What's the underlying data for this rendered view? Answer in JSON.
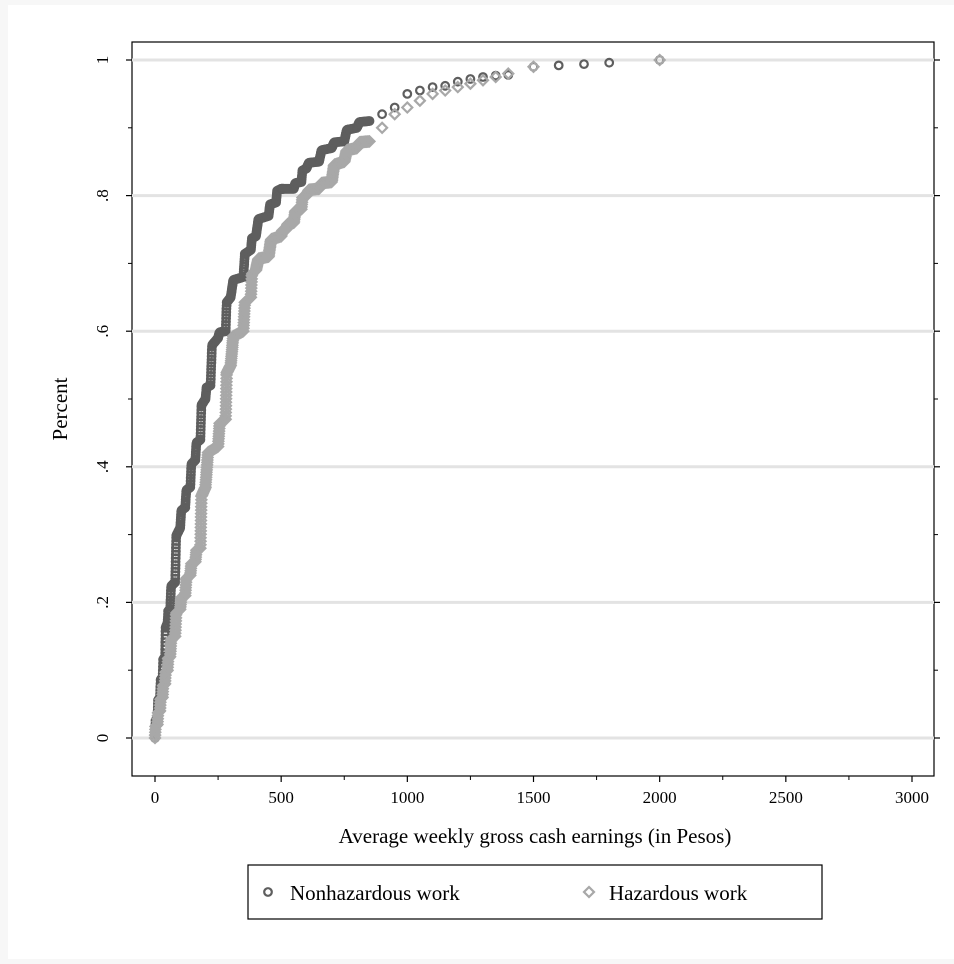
{
  "chart_data": {
    "type": "scatter",
    "xlabel": "Average weekly gross cash earnings (in Pesos)",
    "ylabel": "Percent",
    "xlim": [
      0,
      3000
    ],
    "ylim": [
      0,
      1
    ],
    "x_ticks": [
      "0",
      "500",
      "1000",
      "1500",
      "2000",
      "2500",
      "3000"
    ],
    "x_tick_values": [
      0,
      500,
      1000,
      1500,
      2000,
      2500,
      3000
    ],
    "y_ticks": [
      "0",
      ".2",
      ".4",
      ".6",
      ".8",
      "1"
    ],
    "y_tick_values": [
      0,
      0.2,
      0.4,
      0.6,
      0.8,
      1.0
    ],
    "grid": "horizontal",
    "legend_position": "bottom",
    "series": [
      {
        "name": "Nonhazardous work",
        "marker": "circle",
        "color": "#5e5e5e",
        "x": [
          0,
          10,
          20,
          30,
          40,
          50,
          60,
          80,
          100,
          120,
          140,
          160,
          180,
          200,
          220,
          250,
          280,
          300,
          350,
          380,
          400,
          450,
          480,
          500,
          550,
          580,
          600,
          650,
          700,
          750,
          800,
          850,
          900,
          950,
          1000,
          1050,
          1100,
          1150,
          1200,
          1250,
          1300,
          1350,
          1400,
          1500,
          1600,
          1700,
          1800,
          2000
        ],
        "y": [
          0.0,
          0.03,
          0.06,
          0.09,
          0.12,
          0.17,
          0.19,
          0.23,
          0.31,
          0.34,
          0.37,
          0.41,
          0.44,
          0.5,
          0.52,
          0.59,
          0.6,
          0.65,
          0.68,
          0.72,
          0.74,
          0.77,
          0.79,
          0.81,
          0.81,
          0.82,
          0.84,
          0.85,
          0.87,
          0.88,
          0.9,
          0.91,
          0.92,
          0.93,
          0.95,
          0.955,
          0.96,
          0.962,
          0.968,
          0.972,
          0.975,
          0.977,
          0.978,
          0.99,
          0.992,
          0.994,
          0.996,
          1.0
        ]
      },
      {
        "name": "Hazardous work",
        "marker": "diamond",
        "color": "#a8a8a8",
        "x": [
          0,
          10,
          20,
          30,
          40,
          50,
          60,
          80,
          100,
          120,
          140,
          160,
          180,
          200,
          250,
          280,
          300,
          350,
          380,
          400,
          450,
          500,
          520,
          550,
          580,
          600,
          650,
          700,
          750,
          800,
          850,
          900,
          950,
          1000,
          1050,
          1100,
          1150,
          1200,
          1250,
          1300,
          1350,
          1400,
          1500,
          2000
        ],
        "y": [
          0.0,
          0.02,
          0.04,
          0.06,
          0.08,
          0.1,
          0.12,
          0.15,
          0.19,
          0.21,
          0.24,
          0.26,
          0.28,
          0.37,
          0.43,
          0.47,
          0.55,
          0.6,
          0.65,
          0.69,
          0.71,
          0.74,
          0.75,
          0.76,
          0.78,
          0.8,
          0.81,
          0.82,
          0.85,
          0.87,
          0.88,
          0.9,
          0.92,
          0.93,
          0.94,
          0.95,
          0.955,
          0.96,
          0.965,
          0.97,
          0.975,
          0.98,
          0.99,
          1.0
        ]
      }
    ]
  }
}
